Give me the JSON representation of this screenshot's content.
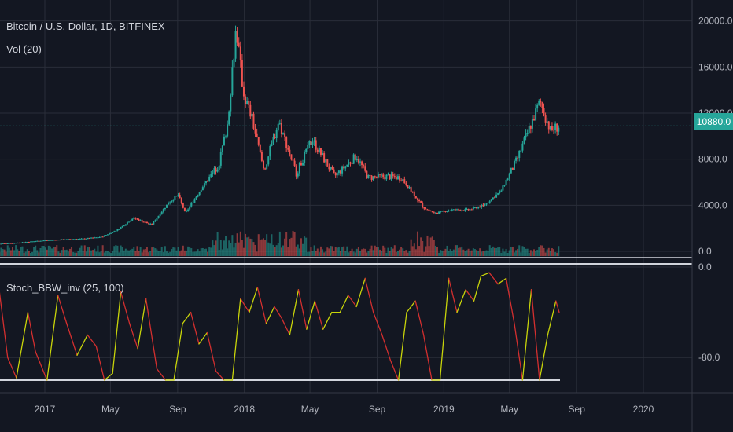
{
  "legend": {
    "symbol": "Bitcoin / U.S. Dollar, 1D, BITFINEX",
    "volume": "Vol (20)",
    "indicator": "Stoch_BBW_inv (25, 100)"
  },
  "price_badge": "10880.0",
  "colors": {
    "background": "#131722",
    "grid": "#2a2e39",
    "up": "#26a69a",
    "down": "#ef5350",
    "price_line": "#26a69a",
    "indicator_rising": "#c8d40a",
    "indicator_falling": "#d32f2f",
    "separator": "#d1d4dc"
  },
  "chart_data": [
    {
      "type": "line",
      "title": "Bitcoin / U.S. Dollar, 1D, BITFINEX",
      "x_unit": "date",
      "x_ticks": [
        {
          "date": "2017-01-01",
          "label": "2017"
        },
        {
          "date": "2017-05-01",
          "label": "May"
        },
        {
          "date": "2017-09-01",
          "label": "Sep"
        },
        {
          "date": "2018-01-01",
          "label": "2018"
        },
        {
          "date": "2018-05-01",
          "label": "May"
        },
        {
          "date": "2018-09-01",
          "label": "Sep"
        },
        {
          "date": "2019-01-01",
          "label": "2019"
        },
        {
          "date": "2019-05-01",
          "label": "May"
        },
        {
          "date": "2019-09-01",
          "label": "Sep"
        },
        {
          "date": "2020-01-01",
          "label": "2020"
        }
      ],
      "y_ticks": [
        0.0,
        4000.0,
        8000.0,
        12000.0,
        16000.0,
        20000.0
      ],
      "y_tick_labels": [
        "0.0",
        "4000.0",
        "8000.0",
        "12000.0",
        "16000.0",
        "20000.0"
      ],
      "ylim": [
        0,
        21000
      ],
      "last_price": 10880,
      "series": [
        {
          "x": [
            "2016-09-01",
            "2016-11-01",
            "2017-01-01",
            "2017-02-15",
            "2017-03-15",
            "2017-04-15",
            "2017-05-15",
            "2017-06-12",
            "2017-07-15",
            "2017-08-15",
            "2017-09-02",
            "2017-09-15",
            "2017-10-15",
            "2017-11-15",
            "2017-12-01",
            "2017-12-17",
            "2017-12-30",
            "2018-01-15",
            "2018-02-06",
            "2018-03-05",
            "2018-04-06",
            "2018-05-05",
            "2018-06-15",
            "2018-07-25",
            "2018-08-15",
            "2018-09-15",
            "2018-10-15",
            "2018-11-25",
            "2018-12-15",
            "2019-01-15",
            "2019-02-15",
            "2019-03-15",
            "2019-04-15",
            "2019-05-15",
            "2019-06-26",
            "2019-07-15",
            "2019-07-31"
          ],
          "values": [
            600,
            700,
            950,
            1050,
            1100,
            1250,
            1900,
            2900,
            2300,
            4200,
            4900,
            3300,
            5500,
            7500,
            11000,
            19500,
            13800,
            11500,
            7000,
            11300,
            6800,
            9700,
            6500,
            8300,
            6400,
            6500,
            6400,
            3800,
            3300,
            3600,
            3600,
            4000,
            5200,
            8000,
            13000,
            10500,
            10880
          ]
        }
      ]
    },
    {
      "type": "bar",
      "title": "Vol (20)"
    },
    {
      "type": "line",
      "title": "Stoch_BBW_inv (25, 100)",
      "y_ticks": [
        0.0,
        -80.0
      ],
      "y_tick_labels": [
        "0.0",
        "-80.0"
      ],
      "ylim": [
        -100,
        0
      ],
      "series": [
        {
          "x": [
            "2016-09-01",
            "2016-09-20",
            "2016-10-10",
            "2016-10-25",
            "2016-11-10",
            "2016-12-01",
            "2016-12-15",
            "2017-01-05",
            "2017-01-25",
            "2017-02-10",
            "2017-03-01",
            "2017-03-20",
            "2017-04-05",
            "2017-04-20",
            "2017-05-05",
            "2017-05-20",
            "2017-06-05",
            "2017-06-20",
            "2017-07-05",
            "2017-07-25",
            "2017-08-10",
            "2017-08-25",
            "2017-09-10",
            "2017-09-25",
            "2017-10-10",
            "2017-10-25",
            "2017-11-10",
            "2017-11-25",
            "2017-12-10",
            "2017-12-25",
            "2018-01-10",
            "2018-01-25",
            "2018-02-10",
            "2018-02-25",
            "2018-03-10",
            "2018-03-25",
            "2018-04-10",
            "2018-04-25",
            "2018-05-10",
            "2018-05-25",
            "2018-06-10",
            "2018-06-25",
            "2018-07-10",
            "2018-07-25",
            "2018-08-10",
            "2018-08-25",
            "2018-09-10",
            "2018-09-25",
            "2018-10-10",
            "2018-10-25",
            "2018-11-10",
            "2018-11-25",
            "2018-12-10",
            "2018-12-25",
            "2019-01-10",
            "2019-01-25",
            "2019-02-10",
            "2019-02-25",
            "2019-03-10",
            "2019-03-25",
            "2019-04-10",
            "2019-04-25",
            "2019-05-10",
            "2019-05-25",
            "2019-06-10",
            "2019-06-25",
            "2019-07-10",
            "2019-07-25",
            "2019-07-31"
          ],
          "values": [
            -30,
            -18,
            -22,
            -80,
            -98,
            -40,
            -75,
            -100,
            -25,
            -50,
            -78,
            -60,
            -70,
            -100,
            -94,
            -22,
            -50,
            -72,
            -28,
            -90,
            -100,
            -100,
            -50,
            -40,
            -68,
            -58,
            -92,
            -100,
            -100,
            -28,
            -40,
            -18,
            -50,
            -35,
            -45,
            -60,
            -20,
            -55,
            -30,
            -55,
            -40,
            -40,
            -25,
            -35,
            -10,
            -40,
            -60,
            -82,
            -100,
            -40,
            -30,
            -60,
            -100,
            -100,
            -10,
            -40,
            -20,
            -30,
            -8,
            -5,
            -15,
            -10,
            -50,
            -100,
            -20,
            -100,
            -60,
            -30,
            -40
          ]
        }
      ]
    }
  ]
}
